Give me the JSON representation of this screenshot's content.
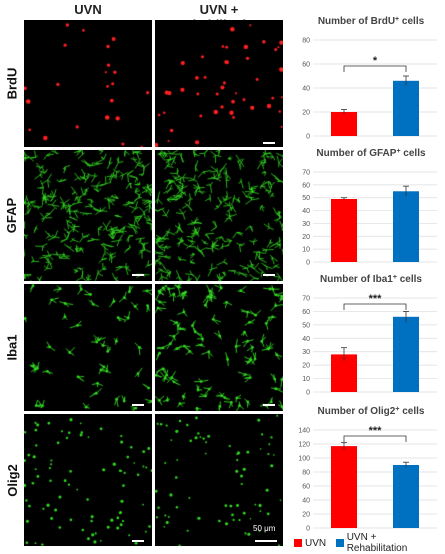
{
  "columns": [
    "UVN",
    "UVN + Rehabilitation"
  ],
  "rows": [
    {
      "label": "BrdU",
      "marker_color": "#ff2020"
    },
    {
      "label": "GFAP",
      "marker_color": "#33dd22"
    },
    {
      "label": "Iba1",
      "marker_color": "#33dd22"
    },
    {
      "label": "Olig2",
      "marker_color": "#33dd22"
    }
  ],
  "scale_label": "50 μm",
  "legend": [
    {
      "label": "UVN",
      "color": "#ff0000"
    },
    {
      "label": "UVN + Rehabilitation",
      "color": "#0070c0"
    }
  ],
  "chart_data": [
    {
      "type": "bar",
      "title_main": "Number of BrdU",
      "title_sup": "+",
      "title_tail": " cells",
      "categories": [
        "UVN",
        "UVN + Rehabilitation"
      ],
      "values": [
        20,
        46
      ],
      "errors": [
        2,
        4
      ],
      "ylim": [
        0,
        80
      ],
      "yticks": [
        0,
        20,
        40,
        60,
        80
      ],
      "significance": "*"
    },
    {
      "type": "bar",
      "title_main": "Number of GFAP",
      "title_sup": "+",
      "title_tail": " cells",
      "categories": [
        "UVN",
        "UVN + Rehabilitation"
      ],
      "values": [
        49,
        55
      ],
      "errors": [
        1,
        4
      ],
      "ylim": [
        0,
        70
      ],
      "yticks": [
        0,
        10,
        20,
        30,
        40,
        50,
        60,
        70
      ],
      "significance": ""
    },
    {
      "type": "bar",
      "title_main": "Number of Iba1",
      "title_sup": "+",
      "title_tail": " cells",
      "categories": [
        "UVN",
        "UVN + Rehabilitation"
      ],
      "values": [
        28,
        56
      ],
      "errors": [
        5,
        4
      ],
      "ylim": [
        0,
        70
      ],
      "yticks": [
        0,
        10,
        20,
        30,
        40,
        50,
        60,
        70
      ],
      "significance": "***"
    },
    {
      "type": "bar",
      "title_main": "Number of Olig2",
      "title_sup": "+",
      "title_tail": " cells",
      "categories": [
        "UVN",
        "UVN + Rehabilitation"
      ],
      "values": [
        117,
        90
      ],
      "errors": [
        5,
        4
      ],
      "ylim": [
        0,
        140
      ],
      "yticks": [
        0,
        20,
        40,
        60,
        80,
        100,
        120,
        140
      ],
      "significance": "***"
    }
  ]
}
